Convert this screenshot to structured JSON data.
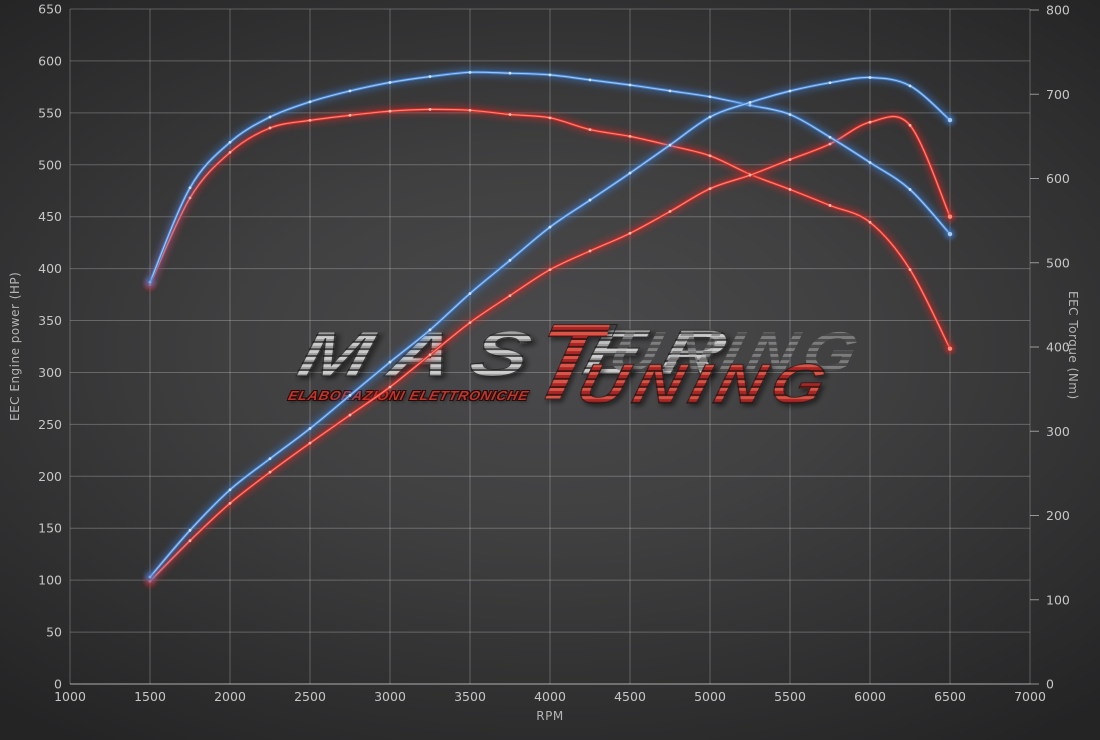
{
  "watermark": {
    "master_prefix": "MAS",
    "master_t": "T",
    "master_suffix": "ER",
    "tuning_rest": "UNING",
    "subtitle": "ELABORAZIONI ELETTRONICHE"
  },
  "chart_data": {
    "type": "line",
    "xlabel": "RPM",
    "ylabel_left": "EEC Engine power (HP)",
    "ylabel_right": "EEC Torque (Nm)",
    "xlim": [
      1000,
      7000
    ],
    "ylim_left": [
      0,
      650
    ],
    "ylim_right": [
      0,
      800
    ],
    "x_ticks": [
      1000,
      1500,
      2000,
      2500,
      3000,
      3500,
      4000,
      4500,
      5000,
      5500,
      6000,
      6500,
      7000
    ],
    "y_left_ticks": [
      0,
      50,
      100,
      150,
      200,
      250,
      300,
      350,
      400,
      450,
      500,
      550,
      600,
      650
    ],
    "y_right_ticks": [
      0,
      100,
      200,
      300,
      400,
      500,
      600,
      700,
      800
    ],
    "grid": true,
    "legend_position": "none",
    "x": [
      1500,
      1750,
      2000,
      2250,
      2500,
      2750,
      3000,
      3250,
      3500,
      3750,
      4000,
      4250,
      4500,
      4750,
      5000,
      5250,
      5500,
      5750,
      6000,
      6250,
      6500
    ],
    "series": [
      {
        "name": "torque-original-red",
        "axis": "right",
        "unit": "Nm",
        "color": "#d42a28",
        "core_color": "#ff8d7a",
        "marker_color": "#ffc2b2",
        "values": [
          474,
          577,
          631,
          660,
          669,
          675,
          680,
          682,
          681,
          676,
          672,
          658,
          650,
          639,
          627,
          605,
          587,
          568,
          548,
          492,
          398
        ]
      },
      {
        "name": "power-original-red",
        "axis": "left",
        "unit": "HP",
        "color": "#d42a28",
        "core_color": "#ff8d7a",
        "marker_color": "#ffc2b2",
        "values": [
          99,
          138,
          174,
          204,
          232,
          259,
          286,
          317,
          348,
          374,
          399,
          417,
          434,
          455,
          477,
          490,
          505,
          520,
          541,
          538,
          450
        ]
      },
      {
        "name": "torque-tuned-blue",
        "axis": "right",
        "unit": "Nm",
        "color": "#3e7ed0",
        "core_color": "#a9cbf2",
        "marker_color": "#d4e6fa",
        "values": [
          477,
          589,
          643,
          673,
          691,
          704,
          714,
          721,
          726,
          725,
          723,
          717,
          711,
          704,
          697,
          687,
          676,
          649,
          619,
          587,
          534
        ]
      },
      {
        "name": "power-tuned-blue",
        "axis": "left",
        "unit": "HP",
        "color": "#3e7ed0",
        "core_color": "#a9cbf2",
        "marker_color": "#d4e6fa",
        "values": [
          103,
          148,
          187,
          217,
          246,
          278,
          310,
          341,
          376,
          408,
          440,
          466,
          492,
          519,
          546,
          560,
          571,
          579,
          584,
          576,
          543
        ]
      }
    ],
    "style": {
      "grid_color": "rgba(215,215,215,0.30)",
      "axis_line_color": "rgba(235,235,235,0.55)",
      "tick_text_color": "#c6c6c6"
    }
  }
}
